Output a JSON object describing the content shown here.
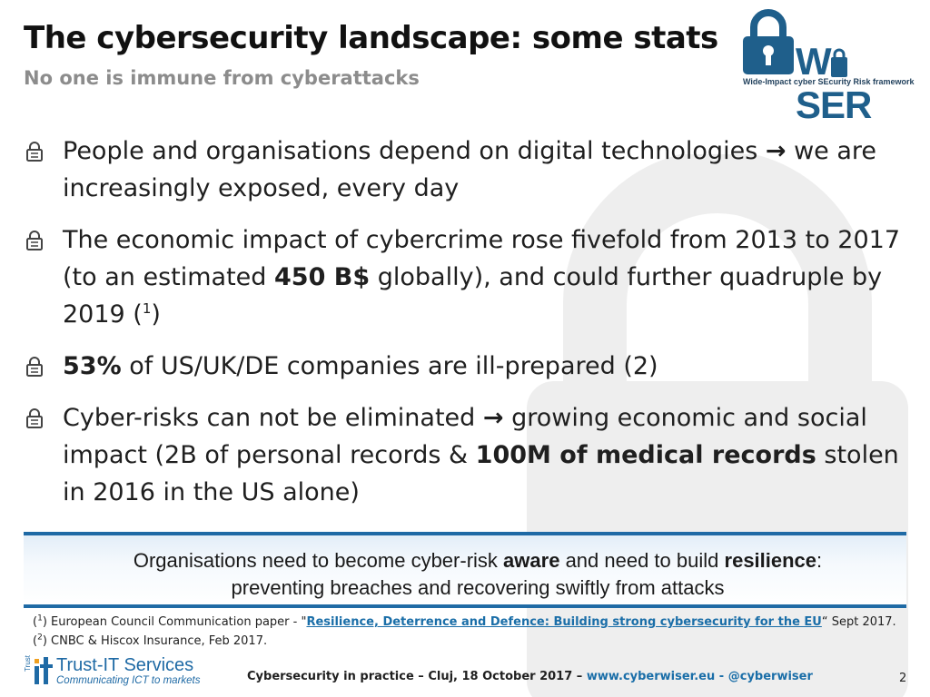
{
  "slide": {
    "title": "The cybersecurity landscape: some stats",
    "subtitle": "No one is immune from cyberattacks"
  },
  "logo": {
    "word": "W SER",
    "tagline": "Wide-Impact cyber SEcurity Risk framework"
  },
  "bullets": [
    {
      "a": "People and organisations depend on digital technologies",
      "arrow": "→",
      "b": "we are increasingly exposed, every day"
    },
    {
      "a": "The economic impact of cybercrime rose fivefold from 2013 to 2017 (to an estimated",
      "bold": "450 B$",
      "b": "globally), and could further quadruple by 2019 (",
      "sup": "1",
      "c": ")"
    },
    {
      "bold": "53%",
      "a": "of US/UK/DE companies are ill-prepared (2)"
    },
    {
      "a": "Cyber-risks can not be eliminated",
      "arrow": "→",
      "b": "growing economic and social impact (2B of personal records &",
      "bold": "100M of medical records",
      "c": "stolen in 2016 in the US alone)"
    }
  ],
  "callout": {
    "a": "Organisations need to become cyber-risk",
    "bold1": "aware",
    "b": "and need to build",
    "bold2": "resilience",
    "c": ":",
    "line2": "preventing breaches and recovering swiftly from attacks"
  },
  "footnotes": [
    {
      "open": "(",
      "num": "1",
      "close": ")",
      "prefix": "European Council Communication paper - \"",
      "link": "Resilience, Deterrence and Defence: Building strong cybersecurity for the EU",
      "suffix": "“ Sept 2017."
    },
    {
      "open": "(",
      "num": "2",
      "close": ")",
      "text": "CNBC & Hiscox Insurance, Feb 2017."
    }
  ],
  "footer": {
    "brand_name": "Trust-IT Services",
    "brand_tagline": "Communicating ICT to markets",
    "brand_vertical": "Trust",
    "event": "Cybersecurity in practice – Cluj, 18 October 2017 –",
    "website": "www.cyberwiser.eu",
    "dash": "-",
    "handle": "@cyberwiser",
    "page": "2"
  },
  "colors": {
    "accent_blue": "#1f6aa5",
    "link_blue": "#1a6ea8",
    "subtitle_gray": "#8c8c8c",
    "watermark_gray": "#eeeeee"
  },
  "icons": [
    "padlock-watermark",
    "padlock-bullet-icon",
    "right-arrow",
    "wiser-lock-logo",
    "trust-it-logo"
  ]
}
